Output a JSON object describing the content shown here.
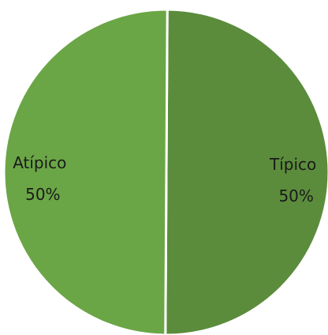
{
  "chart_data": {
    "type": "pie",
    "categories": [
      "Típico",
      "Atípico"
    ],
    "values": [
      50,
      50
    ],
    "value_labels": [
      "50%",
      "50%"
    ],
    "colors": [
      "#5b8c3c",
      "#6ba646"
    ],
    "slice_border_color": "#ffffff",
    "title": "",
    "legend": "none",
    "data_labels": "inside"
  }
}
